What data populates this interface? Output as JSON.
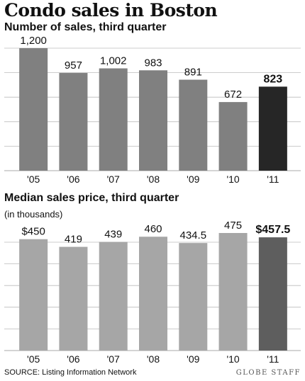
{
  "title": "Condo sales in Boston",
  "source": "SOURCE: Listing Information Network",
  "credit": "GLOBE STAFF",
  "colors": {
    "bar": "#808080",
    "highlight1": "#262626",
    "bar2": "#a6a6a6",
    "highlight2": "#5e5e5e",
    "grid": "#bbbbbb"
  },
  "chart_data": [
    {
      "type": "bar",
      "title": "Number of sales, third quarter",
      "subtitle": "",
      "categories": [
        "'05",
        "'06",
        "'07",
        "'08",
        "'09",
        "'10",
        "'11"
      ],
      "values": [
        1200,
        957,
        1002,
        983,
        891,
        672,
        823
      ],
      "labels": [
        "1,200",
        "957",
        "1,002",
        "983",
        "891",
        "672",
        "823"
      ],
      "highlight_index": 6,
      "ylim": [
        0,
        1200
      ],
      "grid": true
    },
    {
      "type": "bar",
      "title": "Median sales price, third quarter",
      "subtitle": "(in thousands)",
      "categories": [
        "'05",
        "'06",
        "'07",
        "'08",
        "'09",
        "'10",
        "'11"
      ],
      "values": [
        450,
        419,
        439,
        460,
        434.5,
        475,
        457.5
      ],
      "labels": [
        "$450",
        "419",
        "439",
        "460",
        "434.5",
        "475",
        "$457.5"
      ],
      "highlight_index": 6,
      "ylim": [
        0,
        475
      ],
      "grid": true
    }
  ]
}
